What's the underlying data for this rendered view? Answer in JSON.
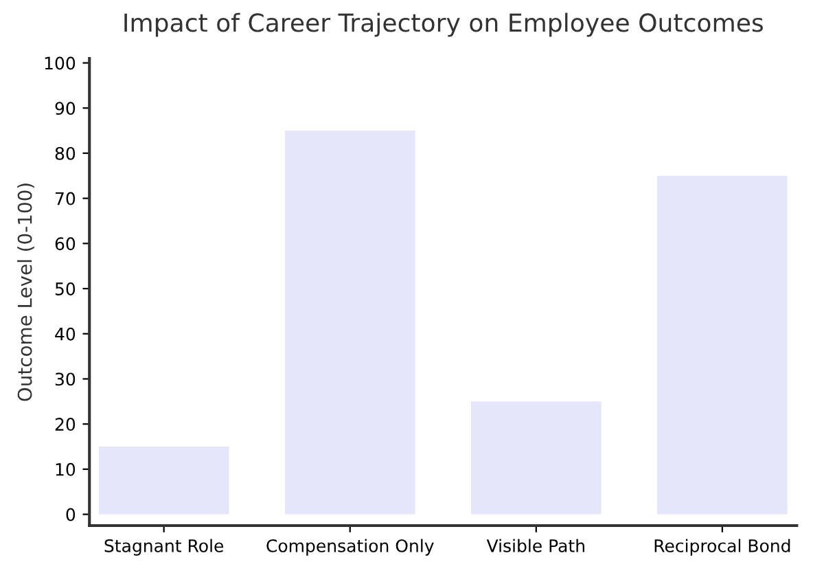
{
  "chart_data": {
    "type": "bar",
    "title": "Impact of Career Trajectory on Employee Outcomes",
    "ylabel": "Outcome Level (0-100)",
    "categories": [
      "Stagnant Role",
      "Compensation Only",
      "Visible Path",
      "Reciprocal Bond"
    ],
    "values": [
      15,
      85,
      25,
      75
    ],
    "color": "#e6e6fa",
    "ylim": [
      -2.5,
      101
    ],
    "yticks": [
      0,
      10,
      20,
      30,
      40,
      50,
      60,
      70,
      80,
      90,
      100
    ],
    "grid": false
  }
}
